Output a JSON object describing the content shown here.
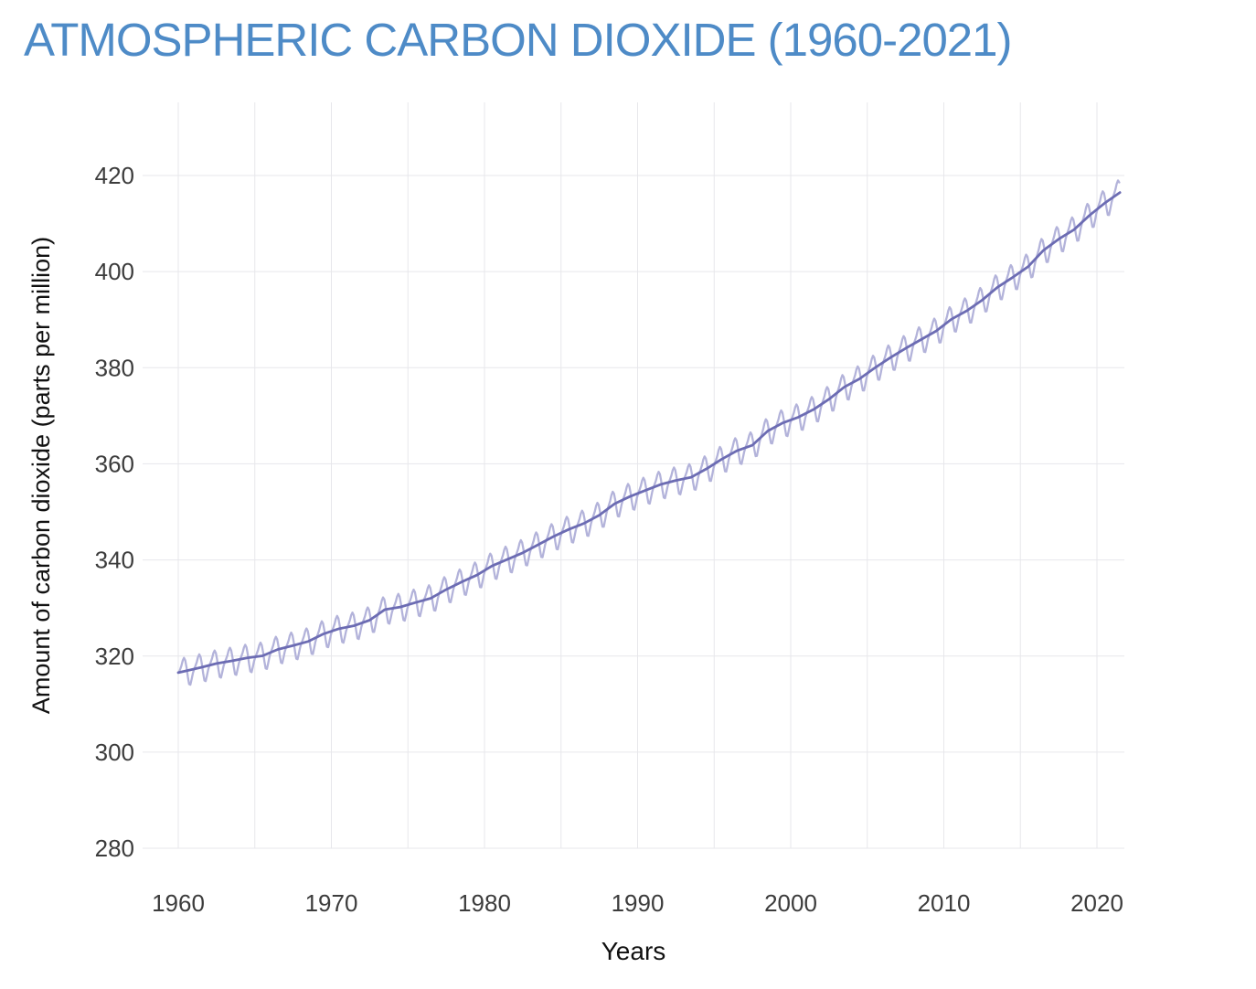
{
  "page": {
    "title_color": "#4e8bc7",
    "background": "#ffffff"
  },
  "axes": {
    "grid_color": "#e7e7eb",
    "tick_color": "#3c3c3c",
    "axis_title_color": "#111111",
    "tick_font_px": 26,
    "axis_title_font_px": 28
  },
  "chart_data": {
    "type": "line",
    "title": "ATMOSPHERIC CARBON DIOXIDE (1960-2021)",
    "xlabel": "Years",
    "ylabel": "Amount of carbon dioxide (parts per million)",
    "x_tick_labels": [
      1960,
      1970,
      1980,
      1990,
      2000,
      2010,
      2020
    ],
    "x_gridlines": [
      1960,
      1965,
      1970,
      1975,
      1980,
      1985,
      1990,
      1995,
      2000,
      2005,
      2010,
      2015,
      2020
    ],
    "y_ticks": [
      280,
      300,
      320,
      340,
      360,
      380,
      400,
      420
    ],
    "xlim": [
      1957.7,
      2021.9
    ],
    "ylim": [
      280,
      435
    ],
    "grid": true,
    "legend": "none",
    "x_data_end": 2021.5,
    "seasonal_offsets_ppm": [
      0.0,
      0.6,
      1.3,
      2.3,
      2.8,
      2.2,
      0.7,
      -1.3,
      -2.9,
      -3.1,
      -2.0,
      -0.8
    ],
    "series": [
      {
        "name": "monthly-co2-with-seasonal-cycle",
        "color": "#b3b3da",
        "stroke_width": 2.3,
        "derived": "annual_trend_plus_seasonal_offsets"
      },
      {
        "name": "annual-mean-trend",
        "color": "#6c6cb3",
        "stroke_width": 2.8,
        "years": [
          1960,
          1961,
          1962,
          1963,
          1964,
          1965,
          1966,
          1967,
          1968,
          1969,
          1970,
          1971,
          1972,
          1973,
          1974,
          1975,
          1976,
          1977,
          1978,
          1979,
          1980,
          1981,
          1982,
          1983,
          1984,
          1985,
          1986,
          1987,
          1988,
          1989,
          1990,
          1991,
          1992,
          1993,
          1994,
          1995,
          1996,
          1997,
          1998,
          1999,
          2000,
          2001,
          2002,
          2003,
          2004,
          2005,
          2006,
          2007,
          2008,
          2009,
          2010,
          2011,
          2012,
          2013,
          2014,
          2015,
          2016,
          2017,
          2018,
          2019,
          2020,
          2021
        ],
        "values": [
          316.91,
          317.64,
          318.45,
          318.99,
          319.62,
          320.04,
          321.37,
          322.18,
          323.05,
          324.62,
          325.68,
          326.32,
          327.46,
          329.68,
          330.19,
          331.13,
          332.03,
          333.84,
          335.41,
          336.84,
          338.76,
          340.12,
          341.48,
          343.15,
          344.87,
          346.35,
          347.61,
          349.31,
          351.69,
          353.2,
          354.45,
          355.7,
          356.54,
          357.21,
          358.96,
          360.97,
          362.74,
          363.88,
          366.84,
          368.54,
          369.71,
          371.32,
          373.45,
          375.98,
          377.7,
          379.98,
          382.09,
          384.02,
          385.83,
          387.64,
          390.1,
          391.85,
          394.06,
          396.74,
          398.81,
          401.01,
          404.41,
          406.76,
          408.72,
          411.66,
          414.24,
          416.45
        ]
      }
    ]
  }
}
